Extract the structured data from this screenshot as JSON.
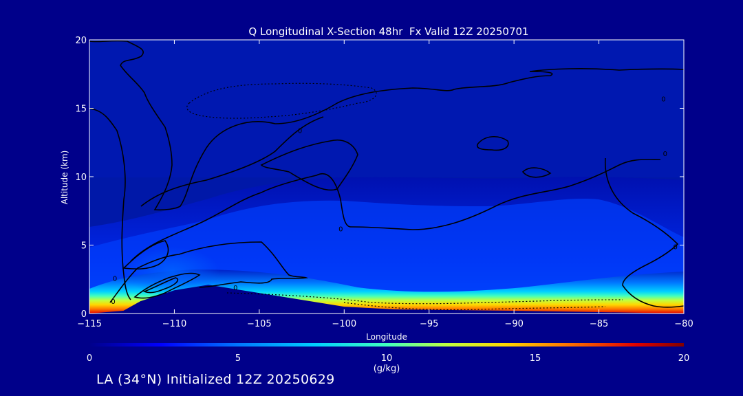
{
  "chart_data": {
    "type": "heatmap",
    "title": "Q Longitudinal X-Section 48hr  Fx Valid 12Z 20250701",
    "xlabel": "Longitude",
    "ylabel": "Altitude (km)",
    "xlim": [
      -115,
      -80
    ],
    "ylim": [
      0,
      20
    ],
    "x_ticks": [
      -115,
      -110,
      -105,
      -100,
      -95,
      -90,
      -85,
      -80
    ],
    "y_ticks": [
      0,
      5,
      10,
      15,
      20
    ],
    "colorbar": {
      "label": "(g/kg)",
      "range": [
        0,
        20
      ],
      "ticks": [
        0,
        5,
        10,
        15,
        20
      ],
      "colors": [
        "#00008a",
        "#0000ff",
        "#0078ff",
        "#00d0ff",
        "#40ffc0",
        "#c0ff40",
        "#ffd800",
        "#ff7800",
        "#e00000",
        "#800000"
      ]
    },
    "terrain_km": [
      {
        "lon": -115,
        "alt": 0.0
      },
      {
        "lon": -113,
        "alt": 0.2
      },
      {
        "lon": -112,
        "alt": 0.9
      },
      {
        "lon": -110,
        "alt": 1.7
      },
      {
        "lon": -108,
        "alt": 2.1
      },
      {
        "lon": -106,
        "alt": 1.7
      },
      {
        "lon": -104,
        "alt": 1.3
      },
      {
        "lon": -102,
        "alt": 0.9
      },
      {
        "lon": -100,
        "alt": 0.5
      },
      {
        "lon": -97,
        "alt": 0.3
      },
      {
        "lon": -90,
        "alt": 0.2
      },
      {
        "lon": -85,
        "alt": 0.1
      },
      {
        "lon": -80,
        "alt": 0.0
      }
    ],
    "contour_labels": [
      {
        "text": "0",
        "lon": -113.5,
        "alt": 2.6
      },
      {
        "text": "0",
        "lon": -113.6,
        "alt": 0.9
      },
      {
        "text": "0",
        "lon": -106.4,
        "alt": 1.9
      },
      {
        "text": "0",
        "lon": -100.2,
        "alt": 6.2
      },
      {
        "text": "0",
        "lon": -102.6,
        "alt": 13.4
      },
      {
        "text": "0",
        "lon": -80.5,
        "alt": 4.9
      },
      {
        "text": "0",
        "lon": -81.1,
        "alt": 11.7
      },
      {
        "text": "0",
        "lon": -81.2,
        "alt": 15.7
      }
    ],
    "grid": false,
    "legend": "none"
  },
  "footer": {
    "init_text": "LA (34°N) Initialized 12Z 20250629"
  }
}
